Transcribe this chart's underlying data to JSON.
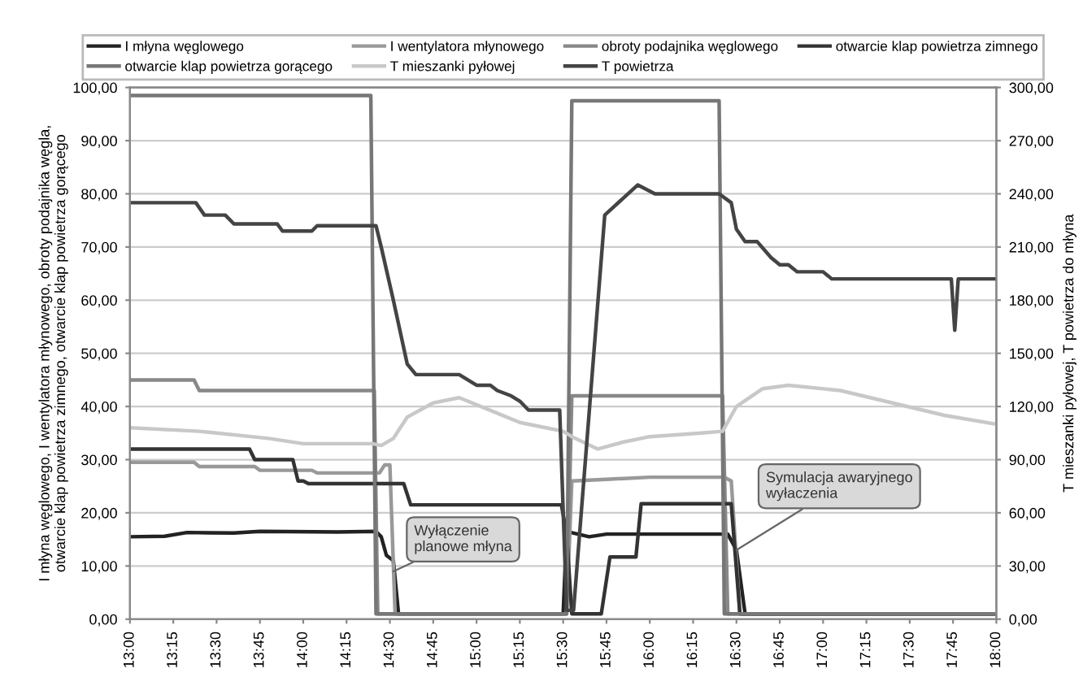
{
  "chart_data": {
    "type": "line",
    "ylabel": "I młyna węglowego, I wentylatora młynowego, obroty podajnika węgla,\notwarcie klap powietrza zimnego, otwarcie klap powietrza gorącego",
    "y2label": "T mieszanki pyłowej, T powietrza do młyna",
    "xlim": [
      13,
      18
    ],
    "xticks": [
      {
        "value": 13,
        "label": "13:00"
      },
      {
        "value": 13.25,
        "label": "13:15"
      },
      {
        "value": 13.5,
        "label": "13:30"
      },
      {
        "value": 13.75,
        "label": "13:45"
      },
      {
        "value": 14,
        "label": "14:00"
      },
      {
        "value": 14.25,
        "label": "14:15"
      },
      {
        "value": 14.5,
        "label": "14:30"
      },
      {
        "value": 14.75,
        "label": "14:45"
      },
      {
        "value": 15,
        "label": "15:00"
      },
      {
        "value": 15.25,
        "label": "15:15"
      },
      {
        "value": 15.5,
        "label": "15:30"
      },
      {
        "value": 15.75,
        "label": "15:45"
      },
      {
        "value": 16,
        "label": "16:00"
      },
      {
        "value": 16.25,
        "label": "16:15"
      },
      {
        "value": 16.5,
        "label": "16:30"
      },
      {
        "value": 16.75,
        "label": "16:45"
      },
      {
        "value": 17,
        "label": "17:00"
      },
      {
        "value": 17.25,
        "label": "17:15"
      },
      {
        "value": 17.5,
        "label": "17:30"
      },
      {
        "value": 17.75,
        "label": "17:45"
      },
      {
        "value": 18,
        "label": "18:00"
      }
    ],
    "ylim": [
      0,
      100
    ],
    "yticks": [
      {
        "value": 0,
        "label": "0,00"
      },
      {
        "value": 10,
        "label": "10,00"
      },
      {
        "value": 20,
        "label": "20,00"
      },
      {
        "value": 30,
        "label": "30,00"
      },
      {
        "value": 40,
        "label": "40,00"
      },
      {
        "value": 50,
        "label": "50,00"
      },
      {
        "value": 60,
        "label": "60,00"
      },
      {
        "value": 70,
        "label": "70,00"
      },
      {
        "value": 80,
        "label": "80,00"
      },
      {
        "value": 90,
        "label": "90,00"
      },
      {
        "value": 100,
        "label": "100,00"
      }
    ],
    "y2lim": [
      0,
      300
    ],
    "y2ticks": [
      {
        "value": 0,
        "label": "0,00"
      },
      {
        "value": 30,
        "label": "30,00"
      },
      {
        "value": 60,
        "label": "60,00"
      },
      {
        "value": 90,
        "label": "90,00"
      },
      {
        "value": 120,
        "label": "120,00"
      },
      {
        "value": 150,
        "label": "150,00"
      },
      {
        "value": 180,
        "label": "180,00"
      },
      {
        "value": 210,
        "label": "210,00"
      },
      {
        "value": 240,
        "label": "240,00"
      },
      {
        "value": 270,
        "label": "270,00"
      },
      {
        "value": 300,
        "label": "300,00"
      }
    ],
    "grid": "y",
    "legend": "top",
    "line_style": "solid",
    "series": [
      {
        "name": "I młyna węglowego",
        "color": "#222222",
        "x": [
          13,
          13.2,
          13.33,
          13.6,
          13.75,
          14.2,
          14.42,
          14.45,
          14.48,
          14.52,
          14.55,
          15.5,
          15.52,
          15.65,
          15.75,
          16.45,
          16.5,
          16.55,
          18
        ],
        "values": [
          15.5,
          15.6,
          16.3,
          16.2,
          16.5,
          16.4,
          16.5,
          15.5,
          12,
          11,
          1,
          1,
          16.5,
          15.5,
          16,
          16,
          13,
          1,
          1
        ]
      },
      {
        "name": "I wentylatora młynowego",
        "color": "#999999",
        "x": [
          13,
          13.37,
          13.4,
          13.72,
          13.75,
          14.05,
          14.08,
          14.44,
          14.47,
          14.5,
          14.53,
          15.52,
          15.55,
          15.75,
          16.0,
          16.43,
          16.47,
          16.52,
          18
        ],
        "values": [
          29.5,
          29.5,
          28.7,
          28.7,
          28,
          28,
          27.5,
          27.5,
          29,
          29,
          1,
          1,
          26,
          26.3,
          26.7,
          26.7,
          26,
          1,
          1
        ]
      },
      {
        "name": "obroty podajnika węglowego",
        "color": "#888888",
        "x": [
          13,
          13.37,
          13.4,
          14.41,
          14.43,
          15.52,
          15.55,
          16.42,
          16.45,
          18
        ],
        "values": [
          45,
          45,
          43,
          43,
          1,
          1,
          42,
          42,
          1,
          1
        ]
      },
      {
        "name": "otwarcie klap powietrza zimnego",
        "color": "#333333",
        "x": [
          13,
          13.69,
          13.72,
          13.94,
          13.97,
          14.0,
          14.03,
          14.58,
          14.62,
          15.49,
          15.52,
          15.55,
          15.72,
          15.77,
          15.92,
          15.95,
          16.47,
          16.52,
          18
        ],
        "values": [
          32,
          32,
          30,
          30,
          26,
          26,
          25.5,
          25.5,
          21.5,
          21.5,
          16,
          1,
          1,
          11.7,
          11.7,
          21.7,
          21.7,
          1,
          1
        ]
      },
      {
        "name": "otwarcie klap powietrza gorącego",
        "color": "#777777",
        "x": [
          13,
          14.39,
          14.42,
          15.52,
          15.55,
          16.4,
          16.43,
          18
        ],
        "values": [
          98.5,
          98.5,
          1,
          1,
          97.5,
          97.5,
          1,
          1
        ]
      },
      {
        "name": "T mieszanki pyłowej",
        "color": "#c8c8c8",
        "axis": "y2",
        "x": [
          13,
          13.4,
          13.8,
          14.0,
          14.4,
          14.45,
          14.52,
          14.6,
          14.75,
          14.9,
          15.1,
          15.25,
          15.4,
          15.5,
          15.55,
          15.7,
          15.85,
          16.0,
          16.3,
          16.42,
          16.5,
          16.65,
          16.8,
          17.1,
          17.4,
          17.7,
          18
        ],
        "values": [
          108,
          106,
          102,
          99,
          99,
          98,
          102,
          114,
          122,
          125,
          117,
          111,
          108,
          106,
          103,
          96,
          100,
          103,
          105,
          106,
          120,
          130,
          132,
          129,
          122,
          115,
          110
        ]
      },
      {
        "name": "T powietrza",
        "color": "#444444",
        "axis": "y2",
        "x": [
          13,
          13.38,
          13.43,
          13.55,
          13.6,
          13.85,
          13.88,
          14.05,
          14.08,
          14.42,
          14.45,
          14.52,
          14.6,
          14.65,
          14.9,
          14.95,
          15.0,
          15.08,
          15.12,
          15.2,
          15.25,
          15.3,
          15.48,
          15.52,
          15.56,
          15.74,
          15.93,
          16.03,
          16.4,
          16.47,
          16.5,
          16.55,
          16.62,
          16.7,
          16.75,
          16.8,
          16.85,
          17.0,
          17.05,
          17.74,
          17.76,
          17.78,
          18
        ],
        "values": [
          235,
          235,
          228,
          228,
          223,
          223,
          219,
          219,
          222,
          222,
          210,
          180,
          144,
          138,
          138,
          135,
          132,
          132,
          129,
          126,
          123,
          118,
          118,
          5,
          5,
          228,
          245,
          240,
          240,
          235,
          220,
          213,
          213,
          204,
          200,
          200,
          196,
          196,
          192,
          192,
          163,
          192,
          192
        ]
      }
    ],
    "annotations": [
      {
        "text": "Wyłączenie\nplanowe młyna",
        "x": 14.52,
        "y": 9
      },
      {
        "text": "Symulacja awaryjnego\nwyłaczenia",
        "x": 16.5,
        "y": 13
      }
    ]
  }
}
